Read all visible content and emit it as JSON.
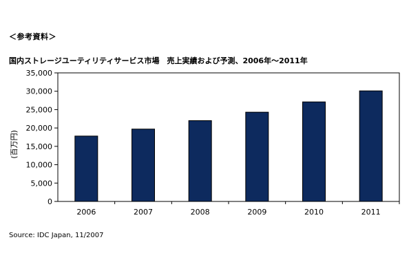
{
  "reference_label": "＜参考資料＞",
  "source": "Source: IDC Japan, 11/2007",
  "chart_data": {
    "type": "bar",
    "title": "国内ストレージユーティリティサービス市場　売上実績および予測、2006年～2011年",
    "xlabel": "",
    "ylabel": "(百万円)",
    "categories": [
      "2006",
      "2007",
      "2008",
      "2009",
      "2010",
      "2011"
    ],
    "values": [
      17800,
      19700,
      22000,
      24300,
      27100,
      30100
    ],
    "ylim": [
      0,
      35000
    ],
    "yticks": [
      0,
      5000,
      10000,
      15000,
      20000,
      25000,
      30000,
      35000
    ],
    "ytick_labels": [
      "0",
      "5,000",
      "10,000",
      "15,000",
      "20,000",
      "25,000",
      "30,000",
      "35,000"
    ],
    "bar_color": "#0d2a5e",
    "grid": false,
    "legend": "none"
  }
}
